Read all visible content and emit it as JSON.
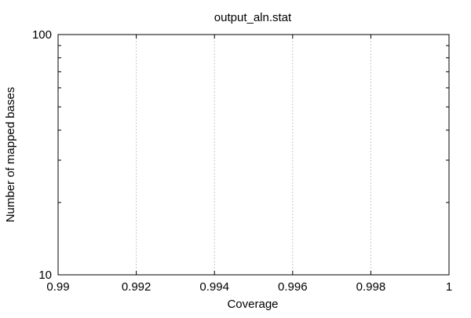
{
  "chart_data": {
    "type": "line",
    "title": "output_aln.stat",
    "xlabel": "Coverage",
    "ylabel": "Number of mapped bases",
    "xlim": [
      0.99,
      1
    ],
    "ylim": [
      10,
      100
    ],
    "yscale": "log",
    "grid": "vertical-dashed",
    "x_ticks": [
      {
        "value": 0.99,
        "label": "0.99"
      },
      {
        "value": 0.992,
        "label": "0.992"
      },
      {
        "value": 0.994,
        "label": "0.994"
      },
      {
        "value": 0.996,
        "label": "0.996"
      },
      {
        "value": 0.998,
        "label": "0.998"
      },
      {
        "value": 1,
        "label": "1"
      }
    ],
    "y_ticks": [
      {
        "value": 10,
        "label": "10"
      },
      {
        "value": 100,
        "label": "100"
      }
    ],
    "series": []
  }
}
